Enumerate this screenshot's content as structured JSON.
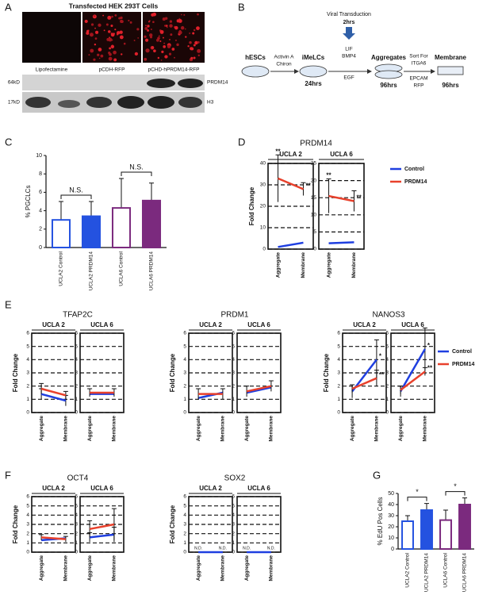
{
  "panel_a": {
    "letter": "A",
    "title": "Transfected HEK 293T Cells",
    "images": [
      "Lipofectamine",
      "pCDH-RFP",
      "pCHD-hPRDM14-RFP"
    ],
    "blot_rows": [
      {
        "size": "64kD",
        "protein": "PRDM14"
      },
      {
        "size": "17kD",
        "protein": "H3"
      }
    ]
  },
  "panel_b": {
    "letter": "B",
    "nodes": [
      {
        "label": "hESCs"
      },
      {
        "label": "iMeLCs",
        "time": "24hrs"
      },
      {
        "label": "Aggregates",
        "time": "96hrs"
      },
      {
        "label": "Membrane",
        "time": "96hrs"
      }
    ],
    "steps": [
      [
        "Activin A",
        "Chiron"
      ],
      [
        "LIF",
        "BMP4",
        "EGF"
      ],
      [
        "Sort For",
        "ITGA6",
        "EPCAM",
        "RFP"
      ]
    ],
    "transduction": [
      "Viral Transduction",
      "2hrs"
    ]
  },
  "chart_data": [
    {
      "letter": "C",
      "type": "bar",
      "ylabel": "% PGCLCs",
      "categories": [
        "UCLA2 Control",
        "UCLA2 PRDM14",
        "UCLA6 Control",
        "UCLA6 PRDM14"
      ],
      "values": [
        3.0,
        3.4,
        4.3,
        5.1
      ],
      "errors": [
        2.0,
        1.6,
        3.2,
        1.9
      ],
      "colors": [
        "#2452e0",
        "#2452e0",
        "#7b2a7e",
        "#7b2a7e"
      ],
      "filled": [
        false,
        true,
        false,
        true
      ],
      "ylim": [
        0,
        10
      ],
      "yticks": [
        0,
        2,
        4,
        6,
        8,
        10
      ],
      "brackets": [
        {
          "between": [
            "UCLA2 Control",
            "UCLA2 PRDM14"
          ],
          "label": "N.S."
        },
        {
          "between": [
            "UCLA6 Control",
            "UCLA6 PRDM14"
          ],
          "label": "N.S."
        }
      ]
    },
    {
      "letter": "D",
      "type": "line",
      "title": "PRDM14",
      "ylabel": "Fold Change",
      "categories": [
        "Aggregate",
        "Membrane"
      ],
      "grid": true,
      "series": [
        {
          "name": "Control",
          "color": "#1f3fe0"
        },
        {
          "name": "PRDM14",
          "color": "#e8412c"
        }
      ],
      "facets": [
        {
          "title": "UCLA 2",
          "ylim": [
            0,
            40
          ],
          "yticks": [
            0,
            10,
            20,
            30,
            40
          ],
          "values": [
            [
              1,
              3
            ],
            [
              33,
              28
            ]
          ],
          "errors": [
            [
              null,
              null
            ],
            [
              11,
              3
            ]
          ],
          "stars": [
            [
              null,
              null
            ],
            [
              "**",
              "**"
            ]
          ]
        },
        {
          "title": "UCLA 6",
          "ylim": [
            0,
            25
          ],
          "yticks": [
            0,
            5,
            10,
            15,
            20,
            25
          ],
          "values": [
            [
              1.7,
              2
            ],
            [
              15.5,
              14
            ]
          ],
          "errors": [
            [
              null,
              null
            ],
            [
              5,
              3
            ]
          ],
          "stars": [
            [
              null,
              null
            ],
            [
              "**",
              "**"
            ]
          ]
        }
      ]
    },
    {
      "letter": "E",
      "type": "line",
      "title": "TFAP2C",
      "ylabel": "Fold Change",
      "categories": [
        "Aggregate",
        "Membrane"
      ],
      "grid": true,
      "series": [
        {
          "color": "#1f3fe0"
        },
        {
          "color": "#e8412c"
        }
      ],
      "facets": [
        {
          "title": "UCLA 2",
          "ylim": [
            0,
            6
          ],
          "yticks": [
            0,
            1,
            2,
            3,
            4,
            5,
            6
          ],
          "values": [
            [
              1.4,
              0.9
            ],
            [
              1.8,
              1.3
            ]
          ],
          "errors": [
            [
              0.4,
              0.4
            ],
            [
              0.4,
              0.3
            ]
          ]
        },
        {
          "title": "UCLA 6",
          "ylim": [
            0,
            6
          ],
          "yticks": [
            0,
            1,
            2,
            3,
            4,
            5,
            6
          ],
          "values": [
            [
              1.4,
              1.4
            ],
            [
              1.5,
              1.5
            ]
          ],
          "errors": [
            [
              null,
              null
            ],
            [
              0.3,
              0.3
            ]
          ]
        }
      ]
    },
    {
      "type": "line",
      "title": "PRDM1",
      "ylabel": "Fold Change",
      "categories": [
        "Aggregate",
        "Membrane"
      ],
      "grid": true,
      "series": [
        {
          "color": "#1f3fe0"
        },
        {
          "color": "#e8412c"
        }
      ],
      "facets": [
        {
          "title": "UCLA 2",
          "ylim": [
            0,
            6
          ],
          "yticks": [
            0,
            1,
            2,
            3,
            4,
            5,
            6
          ],
          "values": [
            [
              1.1,
              1.5
            ],
            [
              1.4,
              1.4
            ]
          ],
          "errors": [
            [
              null,
              null
            ],
            [
              0.4,
              0.4
            ]
          ]
        },
        {
          "title": "UCLA 6",
          "ylim": [
            0,
            6
          ],
          "yticks": [
            0,
            1,
            2,
            3,
            4,
            5,
            6
          ],
          "values": [
            [
              1.5,
              1.9
            ],
            [
              1.6,
              2.0
            ]
          ],
          "errors": [
            [
              null,
              null
            ],
            [
              0.4,
              0.4
            ]
          ]
        }
      ]
    },
    {
      "type": "line",
      "title": "NANOS3",
      "ylabel": "Fold Change",
      "categories": [
        "Aggregate",
        "Membrane"
      ],
      "grid": true,
      "series": [
        {
          "name": "Control",
          "color": "#1f3fe0"
        },
        {
          "name": "PRDM14",
          "color": "#e8412c"
        }
      ],
      "facets": [
        {
          "title": "UCLA 2",
          "ylim": [
            0,
            6
          ],
          "yticks": [
            0,
            1,
            2,
            3,
            4,
            5,
            6
          ],
          "values": [
            [
              1.6,
              4.0
            ],
            [
              1.8,
              2.6
            ]
          ],
          "errors": [
            [
              0.5,
              1.5
            ],
            [
              0.3,
              0.6
            ]
          ],
          "stars": [
            [
              null,
              "*"
            ],
            [
              null,
              "**"
            ]
          ]
        },
        {
          "title": "UCLA 6",
          "ylim": [
            0,
            6
          ],
          "yticks": [
            0,
            1,
            2,
            3,
            4,
            5,
            6
          ],
          "values": [
            [
              1.6,
              4.8
            ],
            [
              1.7,
              3.1
            ]
          ],
          "errors": [
            [
              0.4,
              1.6
            ],
            [
              0.3,
              0.3
            ]
          ],
          "stars": [
            [
              null,
              "*"
            ],
            [
              null,
              "**"
            ]
          ]
        }
      ]
    },
    {
      "letter": "F",
      "type": "line",
      "title": "OCT4",
      "ylabel": "Fold Change",
      "categories": [
        "Aggregate",
        "Membrane"
      ],
      "grid": true,
      "series": [
        {
          "color": "#1f3fe0"
        },
        {
          "color": "#e8412c"
        }
      ],
      "facets": [
        {
          "title": "UCLA 2",
          "ylim": [
            0,
            6
          ],
          "yticks": [
            0,
            1,
            2,
            3,
            4,
            5,
            6
          ],
          "values": [
            [
              1.3,
              1.5
            ],
            [
              1.6,
              1.4
            ]
          ],
          "errors": [
            [
              null,
              null
            ],
            [
              0.3,
              0.3
            ]
          ]
        },
        {
          "title": "UCLA 6",
          "ylim": [
            0,
            6
          ],
          "yticks": [
            0,
            1,
            2,
            3,
            4,
            5,
            6
          ],
          "values": [
            [
              1.6,
              1.9
            ],
            [
              2.5,
              3.0
            ]
          ],
          "errors": [
            [
              0.5,
              0.8
            ],
            [
              0.9,
              1.7
            ]
          ]
        }
      ]
    },
    {
      "type": "line",
      "title": "SOX2",
      "ylabel": "Fold Change",
      "categories": [
        "Aggregate",
        "Membrane"
      ],
      "grid": true,
      "series": [
        {
          "color": "#1f3fe0"
        }
      ],
      "facets": [
        {
          "title": "UCLA 2",
          "ylim": [
            0,
            6
          ],
          "yticks": [
            0,
            1,
            2,
            3,
            4,
            5,
            6
          ],
          "values": [
            [
              0,
              0
            ]
          ],
          "value_labels": [
            [
              "N.D.",
              "N.D."
            ]
          ]
        },
        {
          "title": "UCLA 6",
          "ylim": [
            0,
            6
          ],
          "yticks": [
            0,
            1,
            2,
            3,
            4,
            5,
            6
          ],
          "values": [
            [
              0,
              0
            ]
          ],
          "value_labels": [
            [
              "N.D.",
              "N.D."
            ]
          ]
        }
      ]
    },
    {
      "letter": "G",
      "type": "bar",
      "ylabel": "% EdU Pos Cells",
      "categories": [
        "UCLA2 Control",
        "UCLA2 PRDM14",
        "UCLA6 Control",
        "UCLA6 PRDM14"
      ],
      "values": [
        25,
        35,
        26,
        40
      ],
      "errors": [
        5,
        6,
        9,
        6
      ],
      "colors": [
        "#2452e0",
        "#2452e0",
        "#7b2a7e",
        "#7b2a7e"
      ],
      "filled": [
        false,
        true,
        false,
        true
      ],
      "ylim": [
        0,
        50
      ],
      "yticks": [
        0,
        10,
        20,
        30,
        40,
        50
      ],
      "brackets": [
        {
          "between": [
            "UCLA2 Control",
            "UCLA2 PRDM14"
          ],
          "label": "*"
        },
        {
          "between": [
            "UCLA6 Control",
            "UCLA6 PRDM14"
          ],
          "label": "*"
        }
      ]
    }
  ]
}
